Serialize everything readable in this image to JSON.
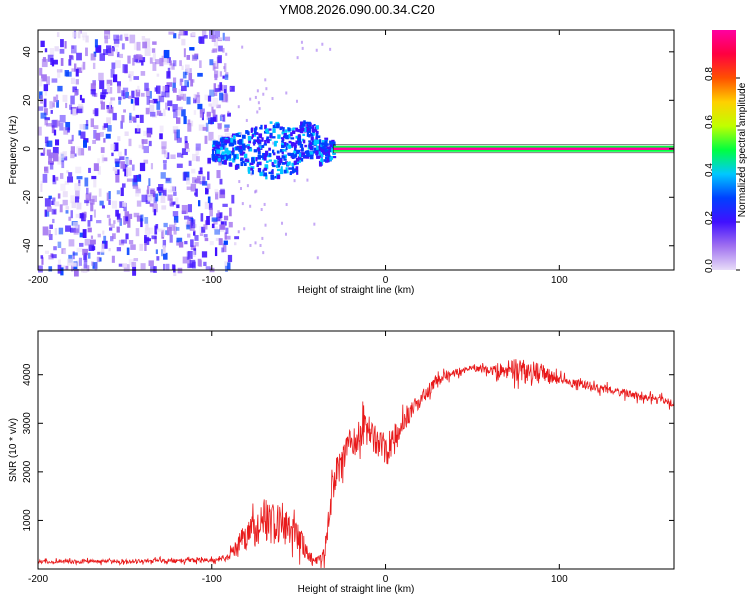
{
  "title": "YM08.2026.090.00.34.C20",
  "chart_data": [
    {
      "type": "heatmap",
      "xlabel": "Height of straight line (km)",
      "ylabel": "Frequency (Hz)",
      "xlim": [
        -200,
        166
      ],
      "ylim": [
        -50,
        49
      ],
      "x_ticks": [
        "-200",
        "-100",
        "0",
        "100"
      ],
      "x_tick_values": [
        -200,
        -100,
        0,
        100
      ],
      "y_ticks": [
        "40",
        "20",
        "0",
        "-20",
        "-40"
      ],
      "y_tick_values": [
        40,
        20,
        0,
        -20,
        -40
      ],
      "colorbar": {
        "label": "Normalized spectral amplitude",
        "range": [
          0,
          1
        ],
        "ticks": [
          "0.0",
          "0.2",
          "0.4",
          "0.6",
          "0.8"
        ],
        "tick_values": [
          0.0,
          0.2,
          0.4,
          0.6,
          0.8
        ],
        "colors": [
          "#e8dcf8",
          "#a070f0",
          "#4010ff",
          "#0040ff",
          "#00c8ff",
          "#00ff40",
          "#c0ff00",
          "#ffd000",
          "#ff5000",
          "#ff0040",
          "#ff00a0"
        ]
      },
      "features": {
        "noise_region_x": [
          -200,
          -92
        ],
        "cluster_region_x": [
          -100,
          -30
        ],
        "cluster_frequency_range": [
          -12,
          12
        ],
        "carrier_start_x": -30,
        "carrier_frequency": 0,
        "carrier_amplitude": 0.95
      }
    },
    {
      "type": "line",
      "xlabel": "Height of straight line (km)",
      "ylabel": "SNR (10 * v/v)",
      "xlim": [
        -200,
        166
      ],
      "ylim": [
        0,
        4900
      ],
      "x_ticks": [
        "-200",
        "-100",
        "0",
        "100"
      ],
      "x_tick_values": [
        -200,
        -100,
        0,
        100
      ],
      "y_ticks": [
        "4000",
        "3000",
        "2000",
        "1000"
      ],
      "y_tick_values": [
        4000,
        3000,
        2000,
        1000
      ],
      "color": "#e8191a",
      "envelope": {
        "x": [
          -200,
          -150,
          -100,
          -90,
          -80,
          -70,
          -60,
          -50,
          -45,
          -40,
          -35,
          -30,
          -20,
          -10,
          0,
          10,
          20,
          30,
          40,
          50,
          60,
          70,
          80,
          90,
          100,
          120,
          140,
          166
        ],
        "mean": [
          150,
          160,
          180,
          260,
          700,
          1000,
          900,
          700,
          300,
          150,
          400,
          1800,
          2600,
          2900,
          2400,
          3000,
          3500,
          3900,
          4050,
          4150,
          4100,
          4100,
          4100,
          4050,
          3900,
          3750,
          3600,
          3420
        ],
        "spread": [
          80,
          80,
          90,
          150,
          600,
          900,
          800,
          700,
          300,
          150,
          500,
          700,
          700,
          700,
          700,
          400,
          300,
          200,
          150,
          150,
          150,
          450,
          450,
          400,
          200,
          180,
          160,
          160
        ]
      }
    }
  ]
}
